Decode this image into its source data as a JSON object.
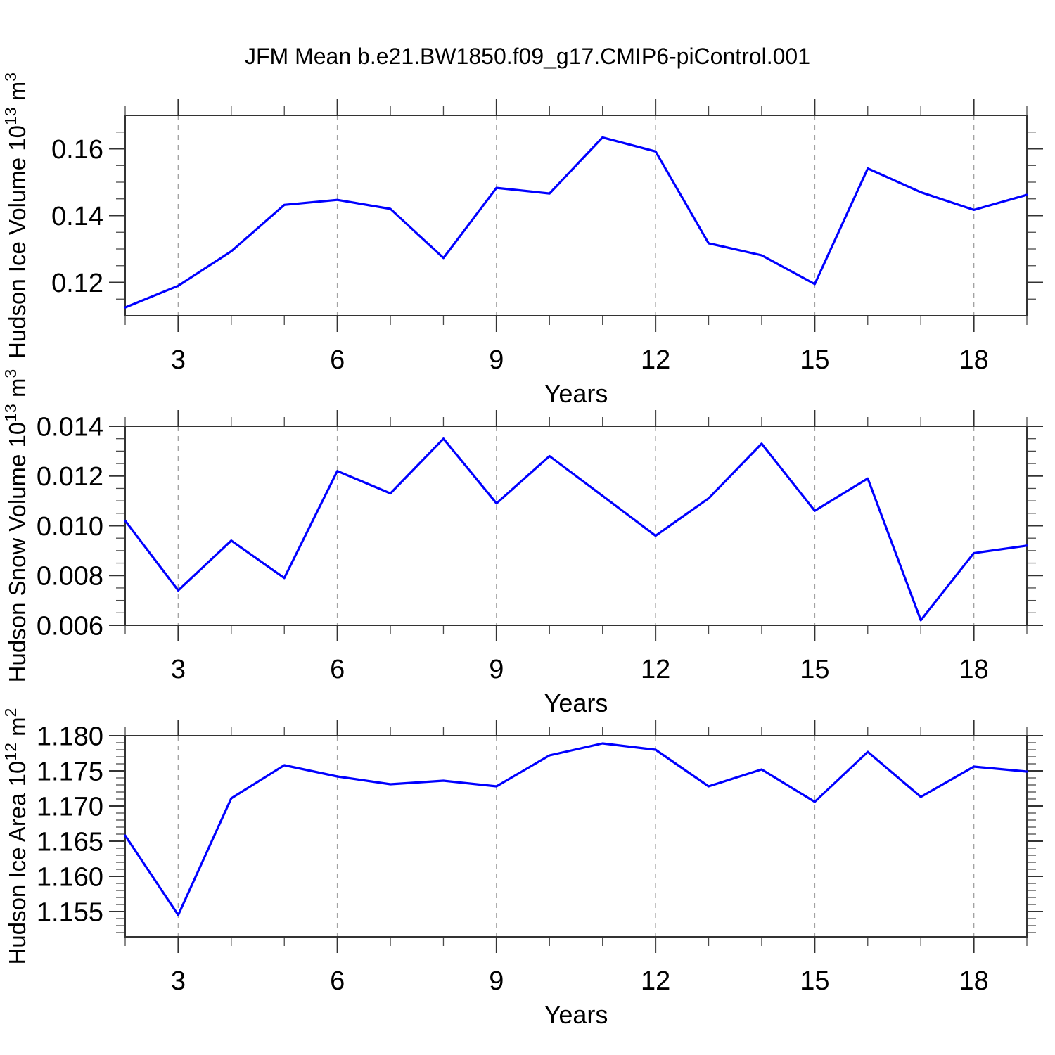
{
  "title": "JFM Mean b.e21.BW1850.f09_g17.CMIP6-piControl.001",
  "colors": {
    "line": "#0000ff",
    "frame": "#333333",
    "tick_major": "#333333",
    "tick_minor": "#4a4a4a",
    "grid": "#a3a3a3",
    "text": "#000000",
    "background": "#ffffff"
  },
  "chart_data": [
    {
      "type": "line",
      "series_name": "Hudson Ice Volume",
      "ylabel": "Hudson Ice Volume 10^13 m^3",
      "ylabel_rich": [
        [
          "t",
          "Hudson Ice Volume 10"
        ],
        [
          "s",
          "13"
        ],
        [
          "t",
          " m"
        ],
        [
          "s",
          "3"
        ]
      ],
      "xlabel": "Years",
      "x": [
        2,
        3,
        4,
        5,
        6,
        7,
        8,
        9,
        10,
        11,
        12,
        13,
        14,
        15,
        16,
        17,
        18,
        19
      ],
      "values": [
        0.1125,
        0.119,
        0.1293,
        0.1432,
        0.1447,
        0.142,
        0.1273,
        0.1483,
        0.1466,
        0.1634,
        0.1592,
        0.1317,
        0.1281,
        0.1195,
        0.1541,
        0.147,
        0.1417,
        0.1462
      ],
      "xlim": [
        2,
        19
      ],
      "ylim": [
        0.11,
        0.17
      ],
      "xticks_major": [
        3,
        6,
        9,
        12,
        15,
        18
      ],
      "xtick_labels": [
        "3",
        "6",
        "9",
        "12",
        "15",
        "18"
      ],
      "xticks_minor": [
        2,
        4,
        5,
        7,
        8,
        10,
        11,
        13,
        14,
        16,
        17,
        19
      ],
      "yticks_major": [
        0.12,
        0.14,
        0.16
      ],
      "ytick_labels": [
        "0.12",
        "0.14",
        "0.16"
      ],
      "yticks_minor": [
        0.115,
        0.125,
        0.13,
        0.135,
        0.145,
        0.15,
        0.155,
        0.165
      ],
      "grid": "vertical-dashed",
      "legend": "none"
    },
    {
      "type": "line",
      "series_name": "Hudson Snow Volume",
      "ylabel": "Hudson Snow Volume 10^13 m^3",
      "ylabel_rich": [
        [
          "t",
          "Hudson Snow Volume 10"
        ],
        [
          "s",
          "13"
        ],
        [
          "t",
          " m"
        ],
        [
          "s",
          "3"
        ]
      ],
      "xlabel": "Years",
      "x": [
        2,
        3,
        4,
        5,
        6,
        7,
        8,
        9,
        10,
        11,
        12,
        13,
        14,
        15,
        16,
        17,
        18,
        19
      ],
      "values": [
        0.0102,
        0.0074,
        0.0094,
        0.0079,
        0.0122,
        0.0113,
        0.0135,
        0.0109,
        0.0128,
        0.0112,
        0.0096,
        0.0111,
        0.0133,
        0.0106,
        0.0119,
        0.0062,
        0.0089,
        0.0092
      ],
      "xlim": [
        2,
        19
      ],
      "ylim": [
        0.006,
        0.014
      ],
      "xticks_major": [
        3,
        6,
        9,
        12,
        15,
        18
      ],
      "xtick_labels": [
        "3",
        "6",
        "9",
        "12",
        "15",
        "18"
      ],
      "xticks_minor": [
        2,
        4,
        5,
        7,
        8,
        10,
        11,
        13,
        14,
        16,
        17,
        19
      ],
      "yticks_major": [
        0.006,
        0.008,
        0.01,
        0.012,
        0.014
      ],
      "ytick_labels": [
        "0.006",
        "0.008",
        "0.010",
        "0.012",
        "0.014"
      ],
      "yticks_minor": [
        0.0065,
        0.007,
        0.0075,
        0.0085,
        0.009,
        0.0095,
        0.0105,
        0.011,
        0.0115,
        0.0125,
        0.013,
        0.0135
      ],
      "grid": "vertical-dashed",
      "legend": "none"
    },
    {
      "type": "line",
      "series_name": "Hudson Ice Area",
      "ylabel": "Hudson Ice Area 10^12 m^2",
      "ylabel_rich": [
        [
          "t",
          "Hudson Ice Area 10"
        ],
        [
          "s",
          "12"
        ],
        [
          "t",
          " m"
        ],
        [
          "s",
          "2"
        ]
      ],
      "xlabel": "Years",
      "x": [
        2,
        3,
        4,
        5,
        6,
        7,
        8,
        9,
        10,
        11,
        12,
        13,
        14,
        15,
        16,
        17,
        18,
        19
      ],
      "values": [
        1.1658,
        1.1545,
        1.1711,
        1.1758,
        1.1742,
        1.1731,
        1.1736,
        1.1728,
        1.1772,
        1.1789,
        1.178,
        1.1728,
        1.1752,
        1.1706,
        1.1777,
        1.1713,
        1.1756,
        1.1749
      ],
      "xlim": [
        2,
        19
      ],
      "ylim": [
        1.1514,
        1.18
      ],
      "xticks_major": [
        3,
        6,
        9,
        12,
        15,
        18
      ],
      "xtick_labels": [
        "3",
        "6",
        "9",
        "12",
        "15",
        "18"
      ],
      "xticks_minor": [
        2,
        4,
        5,
        7,
        8,
        10,
        11,
        13,
        14,
        16,
        17,
        19
      ],
      "yticks_major": [
        1.155,
        1.16,
        1.165,
        1.17,
        1.175,
        1.18
      ],
      "ytick_labels": [
        "1.155",
        "1.160",
        "1.165",
        "1.170",
        "1.175",
        "1.180"
      ],
      "yticks_minor": [
        1.152,
        1.153,
        1.154,
        1.156,
        1.157,
        1.158,
        1.159,
        1.161,
        1.162,
        1.163,
        1.164,
        1.166,
        1.167,
        1.168,
        1.169,
        1.171,
        1.172,
        1.173,
        1.174,
        1.176,
        1.177,
        1.178,
        1.179
      ],
      "grid": "vertical-dashed",
      "legend": "none"
    }
  ]
}
